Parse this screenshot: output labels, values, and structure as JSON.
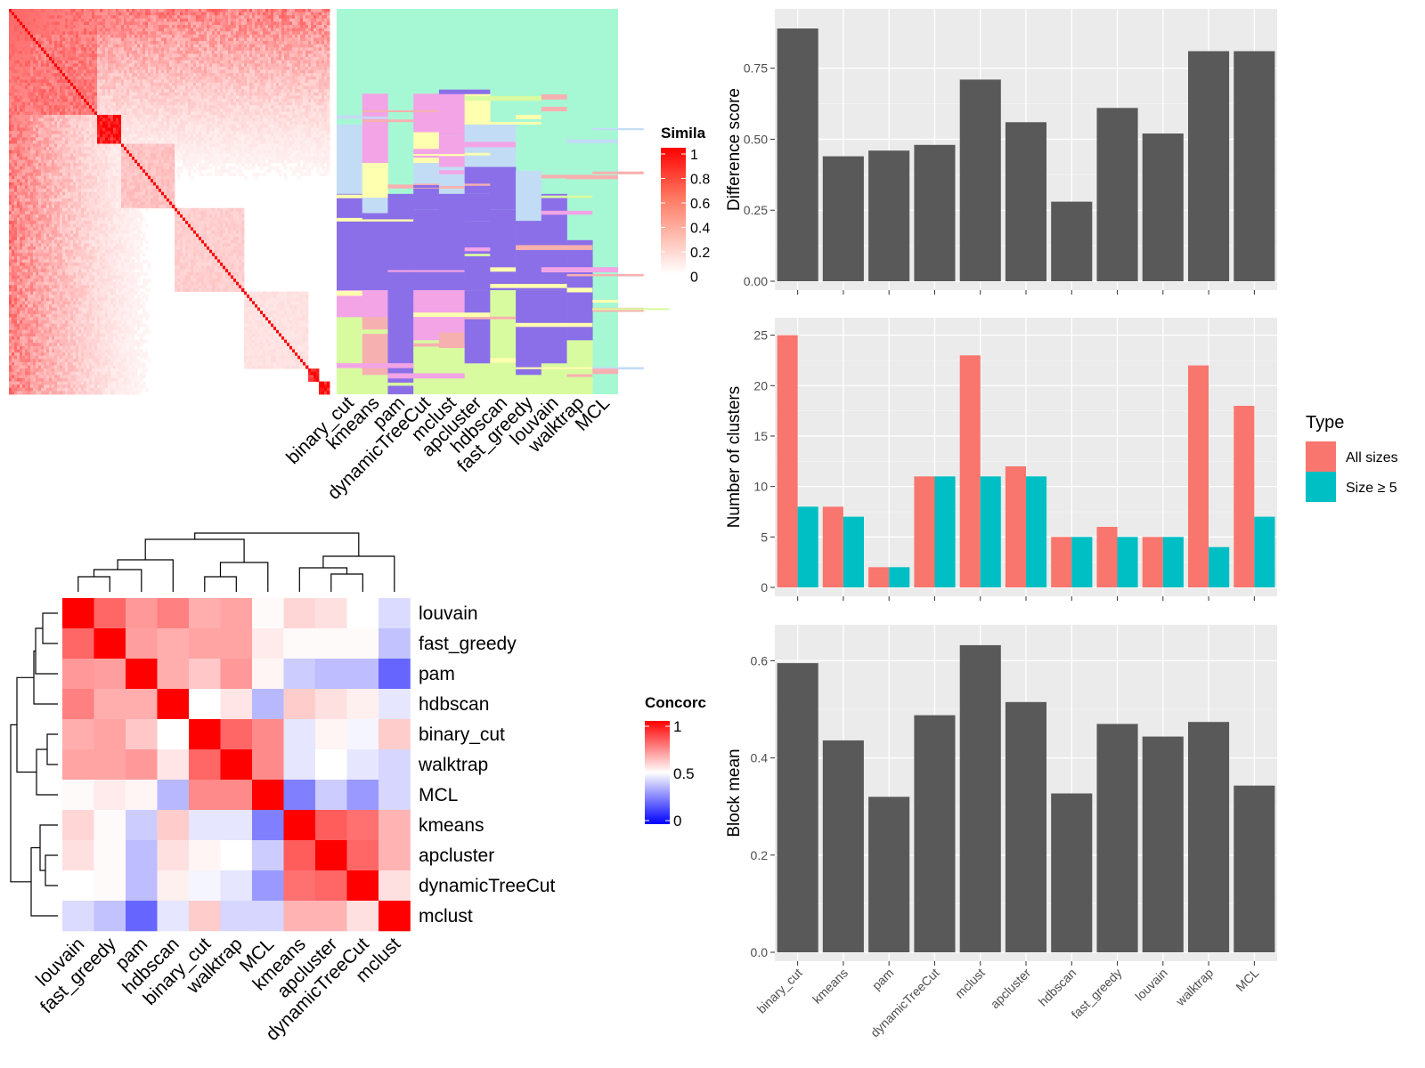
{
  "similarity_heatmap": {
    "legend_title": "Simila",
    "legend_ticks": [
      "1",
      "0.8",
      "0.6",
      "0.4",
      "0.2",
      "0"
    ],
    "colors": {
      "high": "#ff0000",
      "low": "#ffffff"
    }
  },
  "cluster_assignment": {
    "methods": [
      "binary_cut",
      "kmeans",
      "pam",
      "dynamicTreeCut",
      "mclust",
      "apcluster",
      "hdbscan",
      "fast_greedy",
      "louvain",
      "walktrap",
      "MCL"
    ],
    "colors": {
      "background": "#a6f8d4",
      "violet": "#8b6fe8",
      "pink": "#f2a4e6",
      "yellow": "#ffffb0",
      "lightblue": "#c3dcf5",
      "green": "#d9fba0",
      "salmon": "#f7b0b0"
    }
  },
  "concordance_heatmap": {
    "legend_title": "Concorc",
    "legend_ticks": [
      "1",
      "0.5",
      "0"
    ],
    "row_labels": [
      "louvain",
      "fast_greedy",
      "pam",
      "hdbscan",
      "binary_cut",
      "walktrap",
      "MCL",
      "kmeans",
      "apcluster",
      "dynamicTreeCut",
      "mclust"
    ],
    "col_labels": [
      "louvain",
      "fast_greedy",
      "pam",
      "hdbscan",
      "binary_cut",
      "walktrap",
      "MCL",
      "kmeans",
      "apcluster",
      "dynamicTreeCut",
      "mclust"
    ],
    "matrix": [
      [
        1.0,
        0.8,
        0.7,
        0.75,
        0.66,
        0.68,
        0.51,
        0.58,
        0.56,
        0.5,
        0.43
      ],
      [
        0.8,
        1.0,
        0.69,
        0.66,
        0.68,
        0.68,
        0.54,
        0.51,
        0.51,
        0.51,
        0.38
      ],
      [
        0.7,
        0.69,
        1.0,
        0.66,
        0.61,
        0.7,
        0.52,
        0.4,
        0.37,
        0.37,
        0.2
      ],
      [
        0.75,
        0.66,
        0.66,
        1.0,
        0.5,
        0.55,
        0.36,
        0.6,
        0.56,
        0.53,
        0.45
      ],
      [
        0.66,
        0.68,
        0.61,
        0.5,
        1.0,
        0.8,
        0.73,
        0.45,
        0.52,
        0.48,
        0.6
      ],
      [
        0.68,
        0.68,
        0.7,
        0.55,
        0.8,
        1.0,
        0.73,
        0.45,
        0.5,
        0.45,
        0.42
      ],
      [
        0.51,
        0.54,
        0.52,
        0.36,
        0.73,
        0.73,
        1.0,
        0.25,
        0.4,
        0.3,
        0.42
      ],
      [
        0.58,
        0.51,
        0.4,
        0.6,
        0.45,
        0.45,
        0.25,
        1.0,
        0.82,
        0.78,
        0.65
      ],
      [
        0.56,
        0.51,
        0.37,
        0.56,
        0.52,
        0.5,
        0.4,
        0.82,
        1.0,
        0.8,
        0.65
      ],
      [
        0.5,
        0.51,
        0.37,
        0.53,
        0.48,
        0.45,
        0.3,
        0.78,
        0.8,
        1.0,
        0.56
      ],
      [
        0.43,
        0.38,
        0.2,
        0.45,
        0.6,
        0.42,
        0.42,
        0.65,
        0.65,
        0.56,
        1.0
      ]
    ],
    "colors": {
      "high": "#ff0000",
      "mid": "#ffffff",
      "low": "#0000ff"
    }
  },
  "chart_data": [
    {
      "type": "bar",
      "categories": [
        "binary_cut",
        "kmeans",
        "pam",
        "dynamicTreeCut",
        "mclust",
        "apcluster",
        "hdbscan",
        "fast_greedy",
        "louvain",
        "walktrap",
        "MCL"
      ],
      "values": [
        0.89,
        0.44,
        0.46,
        0.48,
        0.71,
        0.56,
        0.28,
        0.61,
        0.52,
        0.81,
        0.81
      ],
      "ylabel": "Difference score",
      "yticks": [
        "0.00",
        "0.25",
        "0.50",
        "0.75"
      ],
      "ylim": [
        0,
        0.94
      ],
      "bar_color": "#595959"
    },
    {
      "type": "bar",
      "categories": [
        "binary_cut",
        "kmeans",
        "pam",
        "dynamicTreeCut",
        "mclust",
        "apcluster",
        "hdbscan",
        "fast_greedy",
        "louvain",
        "walktrap",
        "MCL"
      ],
      "series": [
        {
          "name": "All sizes",
          "color": "#f8766d",
          "values": [
            25,
            8,
            2,
            11,
            23,
            12,
            5,
            6,
            5,
            22,
            18
          ]
        },
        {
          "name": "Size ≥ 5",
          "color": "#00bfc4",
          "values": [
            8,
            7,
            2,
            11,
            11,
            11,
            5,
            5,
            5,
            4,
            7
          ]
        }
      ],
      "ylabel": "Number of clusters",
      "yticks": [
        "0",
        "5",
        "10",
        "15",
        "20",
        "25"
      ],
      "ylim": [
        0,
        26.2
      ],
      "legend_title": "Type",
      "legend_placement": "right"
    },
    {
      "type": "bar",
      "categories": [
        "binary_cut",
        "kmeans",
        "pam",
        "dynamicTreeCut",
        "mclust",
        "apcluster",
        "hdbscan",
        "fast_greedy",
        "louvain",
        "walktrap",
        "MCL"
      ],
      "values": [
        0.595,
        0.436,
        0.32,
        0.488,
        0.632,
        0.515,
        0.327,
        0.47,
        0.444,
        0.474,
        0.343
      ],
      "ylabel": "Block mean",
      "yticks": [
        "0.0",
        "0.2",
        "0.4",
        "0.6"
      ],
      "ylim": [
        0,
        0.663
      ],
      "bar_color": "#595959"
    }
  ]
}
